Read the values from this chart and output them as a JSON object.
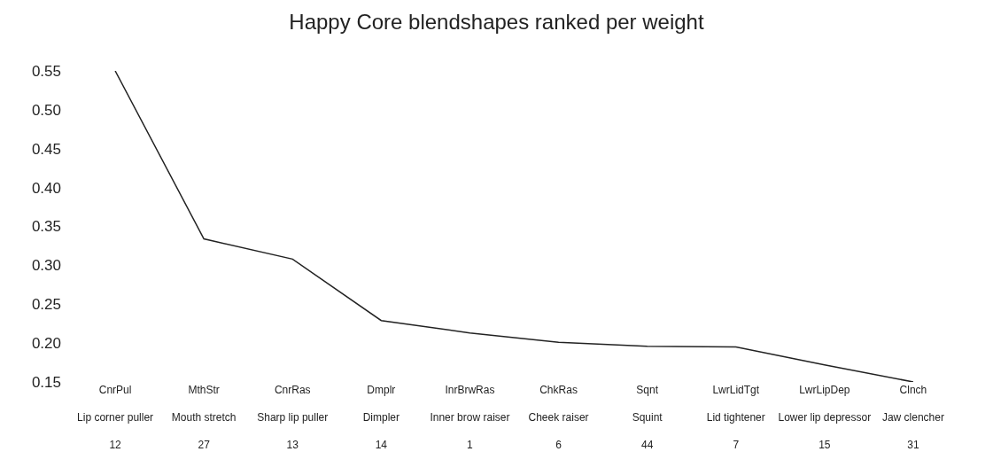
{
  "chart_data": {
    "type": "line",
    "title": "Happy Core blendshapes ranked per weight",
    "categories": [
      "CnrPul\nLip corner puller\n12",
      "MthStr\nMouth stretch\n27",
      "CnrRas\nSharp lip puller\n13",
      "Dmplr\nDimpler\n14",
      "InrBrwRas\nInner brow raiser\n1",
      "ChkRas\nCheek raiser\n6",
      "Sqnt\nSquint\n44",
      "LwrLidTgt\nLid tightener\n7",
      "LwrLipDep\nLower lip depressor\n15",
      "Clnch\nJaw clencher\n31"
    ],
    "series": [
      {
        "color": "#222222",
        "values": [
          0.55,
          0.334,
          0.308,
          0.229,
          0.213,
          0.201,
          0.196,
          0.195,
          0.172,
          0.15
        ]
      }
    ],
    "ylim": [
      0.15,
      0.55
    ],
    "yticks": [
      0.15,
      {
        "value": 0.2,
        "label": "0.20"
      },
      0.25,
      {
        "value": 0.3,
        "label": "0.30"
      },
      0.35,
      {
        "value": 0.4,
        "label": "0.40"
      },
      0.45,
      {
        "value": 0.5,
        "label": "0.50"
      },
      0.55
    ]
  }
}
